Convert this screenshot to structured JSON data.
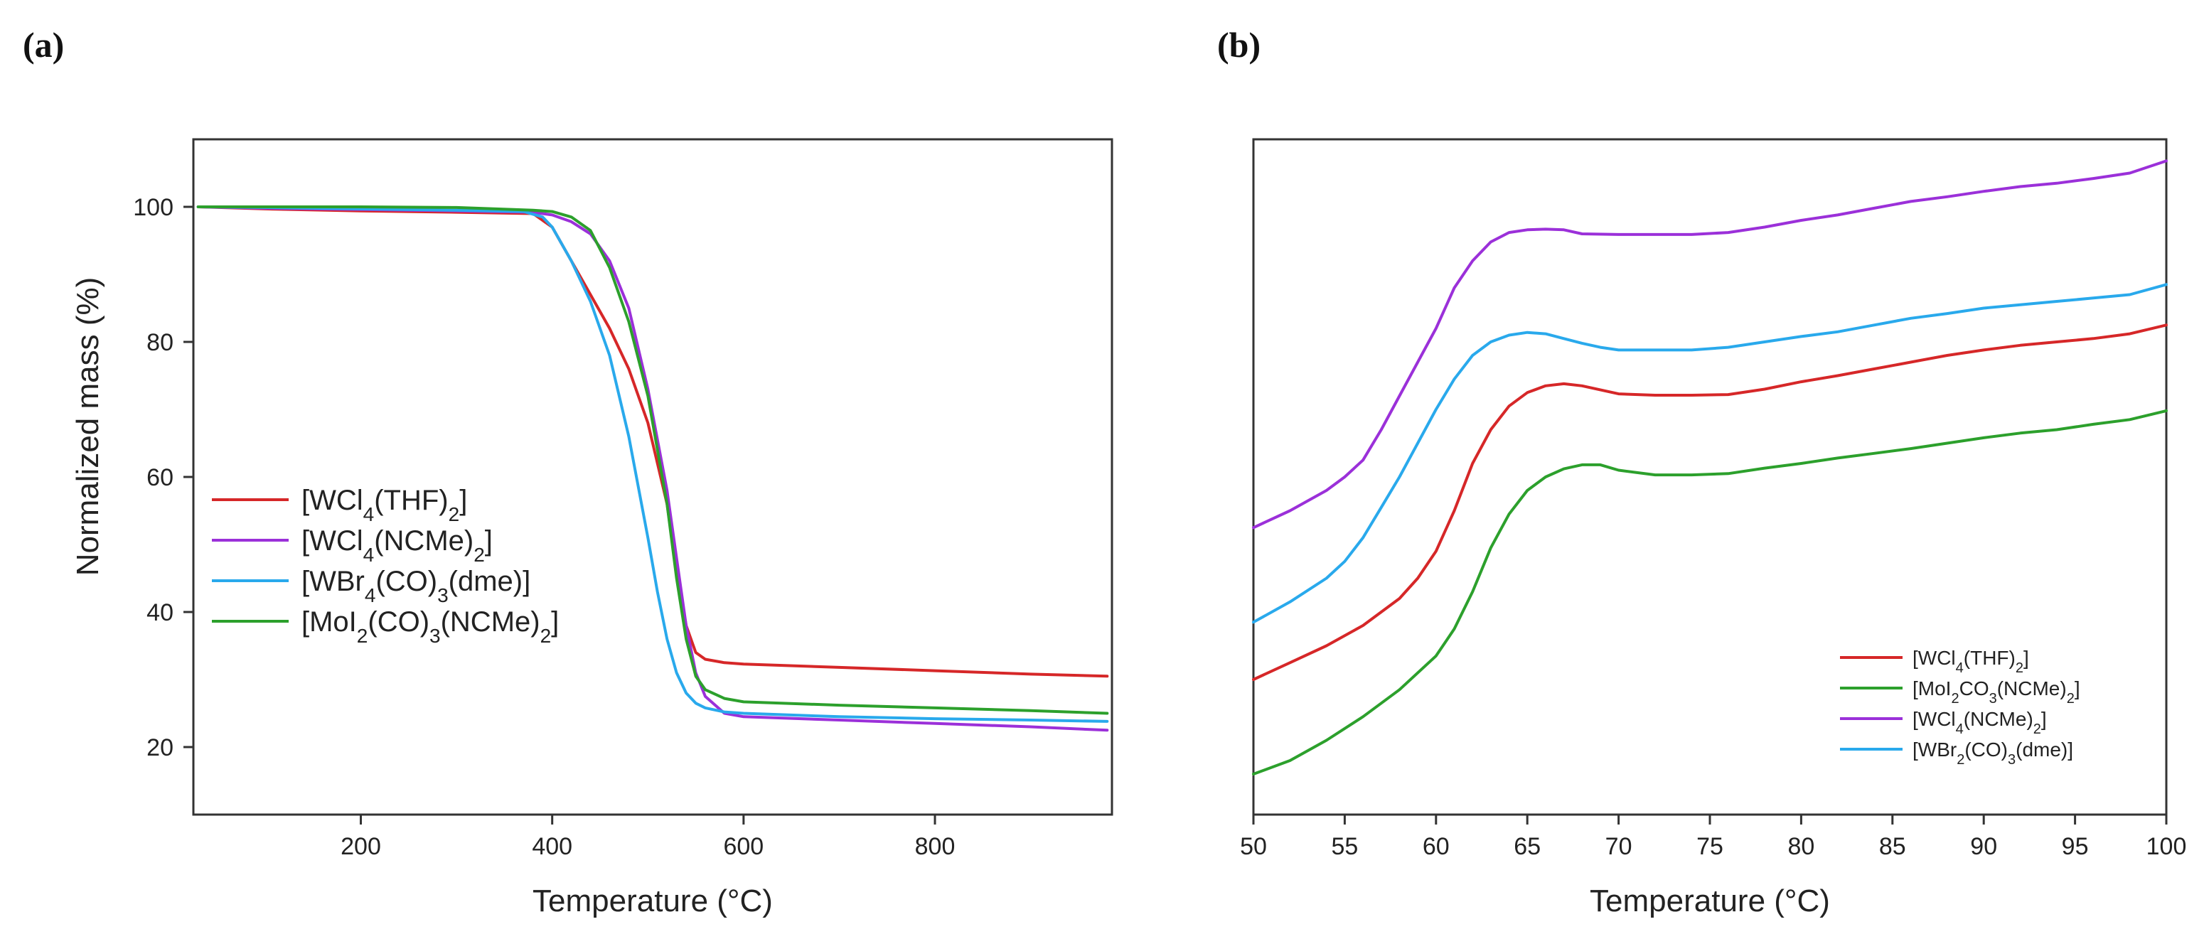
{
  "panels": {
    "a": "(a)",
    "b": "(b)"
  },
  "chart_data": [
    {
      "type": "line",
      "panel": "(a)",
      "title": "",
      "xlabel": "Temperature (°C)",
      "ylabel": "Normalized mass (%)",
      "xlim": [
        25,
        985
      ],
      "ylim": [
        10,
        110
      ],
      "xticks": [
        200,
        400,
        600,
        800
      ],
      "yticks": [
        20,
        40,
        60,
        80,
        100
      ],
      "legend_position": "center-left",
      "series": [
        {
          "name": "[WCl4(THF)2]",
          "label_parts": [
            "[WCl",
            "4",
            "(THF)",
            "2",
            "]"
          ],
          "color": "#d62728",
          "x": [
            30,
            100,
            200,
            300,
            380,
            400,
            420,
            440,
            460,
            480,
            500,
            520,
            530,
            540,
            550,
            560,
            580,
            600,
            700,
            800,
            900,
            980
          ],
          "y": [
            100,
            99.7,
            99.4,
            99.2,
            99,
            97,
            92,
            87,
            82,
            76,
            68,
            56,
            46,
            38,
            34,
            33,
            32.5,
            32.3,
            31.8,
            31.3,
            30.8,
            30.5
          ]
        },
        {
          "name": "[WCl4(NCMe)2]",
          "label_parts": [
            "[WCl",
            "4",
            "(NCMe)",
            "2",
            "]"
          ],
          "color": "#9b30d9",
          "x": [
            30,
            100,
            200,
            300,
            380,
            400,
            420,
            440,
            460,
            480,
            500,
            520,
            530,
            540,
            550,
            560,
            580,
            600,
            700,
            800,
            900,
            980
          ],
          "y": [
            100,
            99.8,
            99.6,
            99.4,
            99.2,
            98.8,
            97.8,
            96,
            92,
            85,
            73,
            58,
            48,
            38,
            31,
            27.5,
            25,
            24.5,
            24,
            23.5,
            23,
            22.5
          ]
        },
        {
          "name": "[WBr4(CO)3(dme)]",
          "label_parts": [
            "[WBr",
            "4",
            "(CO)",
            "3",
            "(dme)]"
          ],
          "color": "#29a9ec",
          "x": [
            30,
            100,
            200,
            300,
            370,
            390,
            400,
            420,
            440,
            460,
            480,
            500,
            510,
            520,
            530,
            540,
            550,
            560,
            580,
            600,
            700,
            800,
            900,
            980
          ],
          "y": [
            100,
            99.9,
            99.7,
            99.5,
            99.3,
            98.5,
            97,
            92,
            86,
            78,
            66,
            51,
            43,
            36,
            31,
            28,
            26.5,
            25.8,
            25.2,
            25,
            24.5,
            24.2,
            24,
            23.8
          ]
        },
        {
          "name": "[MoI2(CO)3(NCMe)2]",
          "label_parts": [
            "[MoI",
            "2",
            "(CO)",
            "3",
            "(NCMe)",
            "2",
            "]"
          ],
          "color": "#2ca02c",
          "x": [
            30,
            100,
            200,
            300,
            380,
            400,
            420,
            440,
            460,
            480,
            500,
            520,
            530,
            540,
            550,
            560,
            580,
            600,
            700,
            800,
            900,
            980
          ],
          "y": [
            100,
            100,
            100,
            99.9,
            99.5,
            99.3,
            98.5,
            96.5,
            91,
            83,
            72,
            56,
            45,
            36,
            30.5,
            28.5,
            27.2,
            26.7,
            26.2,
            25.8,
            25.4,
            25
          ]
        }
      ]
    },
    {
      "type": "line",
      "panel": "(b)",
      "title": "",
      "xlabel": "Temperature (°C)",
      "ylabel": "",
      "xlim": [
        50,
        100
      ],
      "ylim": [
        10,
        110
      ],
      "xticks": [
        50,
        55,
        60,
        65,
        70,
        75,
        80,
        85,
        90,
        95,
        100
      ],
      "yticks": [],
      "legend_position": "bottom-right",
      "series": [
        {
          "name": "[WCl4(THF)2]",
          "label_parts": [
            "[WCl",
            "4",
            "(THF)",
            "2",
            "]"
          ],
          "color": "#d62728",
          "x": [
            50,
            52,
            54,
            56,
            58,
            59,
            60,
            61,
            62,
            63,
            64,
            65,
            66,
            67,
            68,
            70,
            72,
            74,
            76,
            78,
            80,
            82,
            84,
            86,
            88,
            90,
            92,
            94,
            96,
            98,
            100
          ],
          "y": [
            30,
            32.5,
            35,
            38,
            42,
            45,
            49,
            55,
            62,
            67,
            70.5,
            72.5,
            73.5,
            73.8,
            73.5,
            72.3,
            72.1,
            72.1,
            72.2,
            73,
            74.1,
            75,
            76,
            77,
            78,
            78.8,
            79.5,
            80,
            80.5,
            81.2,
            82.5
          ]
        },
        {
          "name": "[MoI2CO3(NCMe)2]",
          "label_parts": [
            "[MoI",
            "2",
            "CO",
            "3",
            "(NCMe)",
            "2",
            "]"
          ],
          "color": "#2ca02c",
          "x": [
            50,
            52,
            54,
            56,
            58,
            60,
            61,
            62,
            63,
            64,
            65,
            66,
            67,
            68,
            69,
            70,
            72,
            74,
            76,
            78,
            80,
            82,
            84,
            86,
            88,
            90,
            92,
            94,
            96,
            98,
            100
          ],
          "y": [
            16,
            18,
            21,
            24.5,
            28.5,
            33.5,
            37.5,
            43,
            49.5,
            54.5,
            58,
            60,
            61.2,
            61.8,
            61.8,
            61,
            60.3,
            60.3,
            60.5,
            61.3,
            62,
            62.8,
            63.5,
            64.2,
            65,
            65.8,
            66.5,
            67,
            67.8,
            68.5,
            69.8
          ]
        },
        {
          "name": "[WCl4(NCMe)2]",
          "label_parts": [
            "[WCl",
            "4",
            "(NCMe)",
            "2",
            "]"
          ],
          "color": "#9b30d9",
          "x": [
            50,
            52,
            54,
            55,
            56,
            57,
            58,
            59,
            60,
            61,
            62,
            63,
            64,
            65,
            66,
            67,
            68,
            70,
            72,
            74,
            76,
            78,
            80,
            82,
            84,
            86,
            88,
            90,
            92,
            94,
            96,
            98,
            100
          ],
          "y": [
            52.5,
            55,
            58,
            60,
            62.5,
            67,
            72,
            77,
            82,
            88,
            92,
            94.8,
            96.2,
            96.6,
            96.7,
            96.6,
            96,
            95.9,
            95.9,
            95.9,
            96.2,
            97,
            98,
            98.8,
            99.8,
            100.8,
            101.5,
            102.3,
            103,
            103.5,
            104.2,
            105,
            106.8
          ]
        },
        {
          "name": "[WBr2(CO)3(dme)]",
          "label_parts": [
            "[WBr",
            "2",
            "(CO)",
            "3",
            "(dme)]"
          ],
          "color": "#29a9ec",
          "x": [
            50,
            52,
            54,
            55,
            56,
            57,
            58,
            59,
            60,
            61,
            62,
            63,
            64,
            65,
            66,
            67,
            68,
            69,
            70,
            72,
            74,
            76,
            78,
            80,
            82,
            84,
            86,
            88,
            90,
            92,
            94,
            96,
            98,
            100
          ],
          "y": [
            38.5,
            41.5,
            45,
            47.5,
            51,
            55.5,
            60,
            65,
            70,
            74.5,
            78,
            80,
            81,
            81.4,
            81.2,
            80.5,
            79.8,
            79.2,
            78.8,
            78.8,
            78.8,
            79.2,
            80,
            80.8,
            81.5,
            82.5,
            83.5,
            84.2,
            85,
            85.5,
            86,
            86.5,
            87,
            88.5
          ]
        }
      ]
    }
  ]
}
